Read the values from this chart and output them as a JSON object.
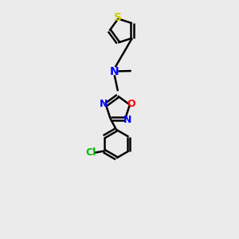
{
  "bg_color": "#ebebeb",
  "bond_color": "#000000",
  "N_color": "#0000ff",
  "O_color": "#ff0000",
  "S_color": "#cccc00",
  "Cl_color": "#00bb00",
  "line_width": 1.8,
  "font_size": 9,
  "xlim": [
    0,
    10
  ],
  "ylim": [
    0,
    14
  ]
}
